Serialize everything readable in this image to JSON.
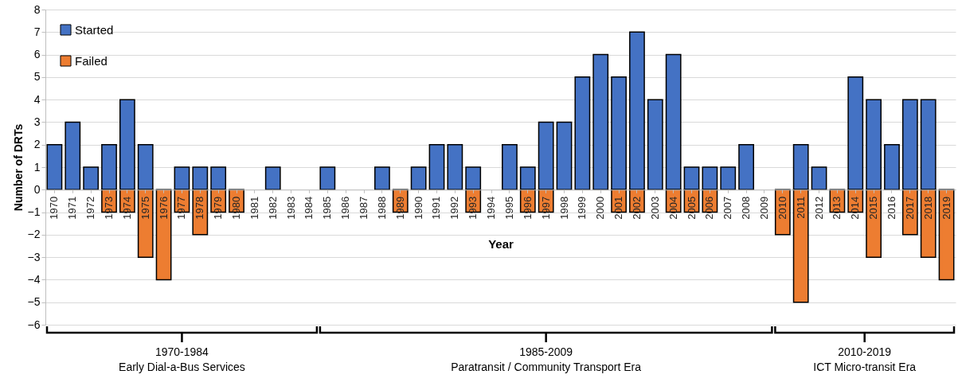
{
  "chart_data": {
    "type": "bar",
    "xlabel": "Year",
    "ylabel": "Number of DRTs",
    "categories": [
      "1970",
      "1971",
      "1972",
      "1973",
      "1974",
      "1975",
      "1976",
      "1977",
      "1978",
      "1979",
      "1980",
      "1981",
      "1982",
      "1983",
      "1984",
      "1985",
      "1986",
      "1987",
      "1988",
      "1989",
      "1990",
      "1991",
      "1992",
      "1993",
      "1994",
      "1995",
      "1996",
      "1997",
      "1998",
      "1999",
      "2000",
      "2001",
      "2002",
      "2003",
      "2004",
      "2005",
      "2006",
      "2007",
      "2008",
      "2009",
      "2010",
      "2011",
      "2012",
      "2013",
      "2014",
      "2015",
      "2016",
      "2017",
      "2018",
      "2019"
    ],
    "series": [
      {
        "name": "Started",
        "color": "#4472c4",
        "values": [
          2,
          3,
          1,
          2,
          4,
          2,
          null,
          1,
          1,
          1,
          null,
          null,
          1,
          null,
          null,
          1,
          null,
          null,
          1,
          null,
          1,
          2,
          2,
          1,
          null,
          2,
          1,
          3,
          3,
          5,
          6,
          5,
          7,
          4,
          6,
          1,
          1,
          1,
          2,
          null,
          null,
          2,
          1,
          null,
          5,
          4,
          2,
          4,
          4,
          null
        ]
      },
      {
        "name": "Failed",
        "color": "#ed7d31",
        "values": [
          null,
          null,
          null,
          -1,
          -1,
          -3,
          -4,
          -1,
          -2,
          -1,
          -1,
          null,
          null,
          null,
          null,
          null,
          null,
          null,
          null,
          -1,
          null,
          null,
          null,
          -1,
          null,
          null,
          -1,
          -1,
          null,
          null,
          null,
          -1,
          -1,
          null,
          -1,
          -1,
          -1,
          null,
          null,
          null,
          -2,
          -5,
          null,
          -1,
          -1,
          -3,
          null,
          -2,
          -3,
          -4
        ]
      }
    ],
    "ylim": [
      -6,
      8
    ],
    "yticks": [
      -6,
      -5,
      -4,
      -3,
      -2,
      -1,
      0,
      1,
      2,
      3,
      4,
      5,
      6,
      7,
      8
    ],
    "grid": "y",
    "legend": "top left",
    "annotations": [
      "1970-1984\nEarly Dial-a-Bus Services",
      "1985-2009\nParatransit / Community Transport Era",
      "2010-2019\nICT Micro-transit Era"
    ]
  }
}
